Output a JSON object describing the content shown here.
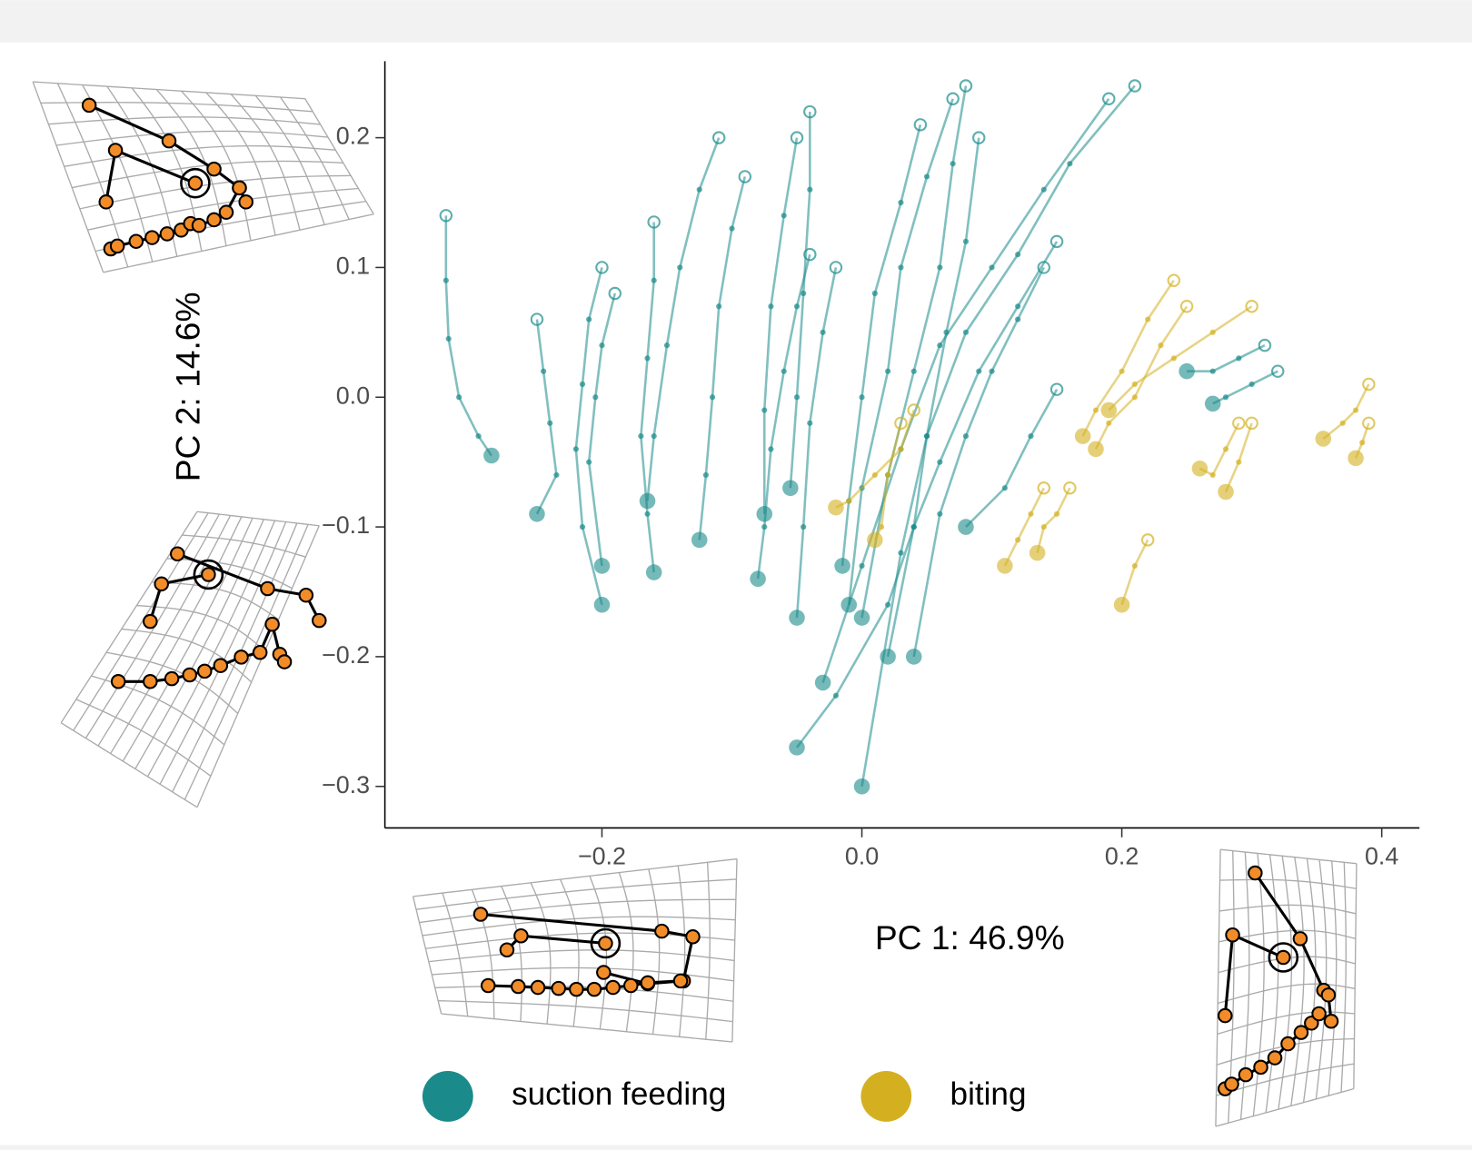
{
  "chart_data": {
    "type": "line",
    "xlabel": "PC 1: 46.9%",
    "ylabel": "PC 2: 14.6%",
    "xlim": [
      -0.367,
      0.429
    ],
    "ylim": [
      -0.332,
      0.259
    ],
    "xticks": [
      {
        "value": -0.2,
        "label": "−0.2"
      },
      {
        "value": 0,
        "label": "0.0"
      },
      0.2,
      0.4
    ],
    "yticks": [
      0.2,
      0.1,
      {
        "value": 0,
        "label": "0.0"
      },
      {
        "value": -0.1,
        "label": "−0.1"
      },
      {
        "value": -0.2,
        "label": "−0.2"
      },
      {
        "value": -0.3,
        "label": "−0.3"
      }
    ],
    "series": [
      {
        "name": "suction feeding",
        "color": "#1a8a8a",
        "trajectories": [
          {
            "x": [
              -0.32,
              -0.32,
              -0.318,
              -0.31,
              -0.295,
              -0.285
            ],
            "y": [
              0.14,
              0.09,
              0.045,
              0.0,
              -0.03,
              -0.045
            ]
          },
          {
            "x": [
              -0.25,
              -0.245,
              -0.24,
              -0.235,
              -0.25
            ],
            "y": [
              0.06,
              0.02,
              -0.02,
              -0.06,
              -0.09
            ]
          },
          {
            "x": [
              -0.2,
              -0.21,
              -0.215,
              -0.22,
              -0.215,
              -0.2
            ],
            "y": [
              0.1,
              0.06,
              0.01,
              -0.04,
              -0.1,
              -0.16
            ]
          },
          {
            "x": [
              -0.19,
              -0.2,
              -0.205,
              -0.21,
              -0.2
            ],
            "y": [
              0.08,
              0.04,
              0.0,
              -0.05,
              -0.13
            ]
          },
          {
            "x": [
              -0.11,
              -0.125,
              -0.14,
              -0.15,
              -0.16,
              -0.165
            ],
            "y": [
              0.2,
              0.16,
              0.1,
              0.04,
              -0.03,
              -0.08
            ]
          },
          {
            "x": [
              -0.16,
              -0.16,
              -0.165,
              -0.17,
              -0.165,
              -0.16
            ],
            "y": [
              0.135,
              0.09,
              0.03,
              -0.03,
              -0.09,
              -0.135
            ]
          },
          {
            "x": [
              -0.09,
              -0.1,
              -0.11,
              -0.115,
              -0.12,
              -0.125
            ],
            "y": [
              0.17,
              0.13,
              0.07,
              0.0,
              -0.06,
              -0.11
            ]
          },
          {
            "x": [
              -0.05,
              -0.06,
              -0.07,
              -0.075,
              -0.075
            ],
            "y": [
              0.2,
              0.14,
              0.07,
              -0.01,
              -0.09
            ]
          },
          {
            "x": [
              -0.04,
              -0.05,
              -0.06,
              -0.07,
              -0.075,
              -0.08
            ],
            "y": [
              0.11,
              0.07,
              0.02,
              -0.04,
              -0.1,
              -0.14
            ]
          },
          {
            "x": [
              -0.04,
              -0.04,
              -0.045,
              -0.05,
              -0.055
            ],
            "y": [
              0.22,
              0.16,
              0.08,
              0.0,
              -0.07
            ]
          },
          {
            "x": [
              0.045,
              0.03,
              0.01,
              0.0,
              -0.01,
              -0.015
            ],
            "y": [
              0.21,
              0.15,
              0.08,
              0.0,
              -0.08,
              -0.13
            ]
          },
          {
            "x": [
              0.07,
              0.05,
              0.03,
              0.02,
              0.0,
              -0.01
            ],
            "y": [
              0.23,
              0.17,
              0.1,
              0.02,
              -0.07,
              -0.16
            ]
          },
          {
            "x": [
              0.08,
              0.07,
              0.06,
              0.04,
              0.02,
              0.0
            ],
            "y": [
              0.24,
              0.18,
              0.1,
              0.02,
              -0.06,
              -0.17
            ]
          },
          {
            "x": [
              0.09,
              0.08,
              0.065,
              0.05,
              0.04,
              0.02
            ],
            "y": [
              0.2,
              0.12,
              0.05,
              -0.03,
              -0.1,
              -0.2
            ]
          },
          {
            "x": [
              0.19,
              0.14,
              0.1,
              0.06,
              0.03,
              0.0,
              -0.03
            ],
            "y": [
              0.23,
              0.16,
              0.1,
              0.04,
              -0.04,
              -0.13,
              -0.22
            ]
          },
          {
            "x": [
              0.21,
              0.16,
              0.12,
              0.08,
              0.05,
              0.03,
              0.0
            ],
            "y": [
              0.24,
              0.18,
              0.11,
              0.05,
              -0.03,
              -0.12,
              -0.3
            ]
          },
          {
            "x": [
              0.15,
              0.12,
              0.09,
              0.06,
              0.04,
              0.02,
              -0.02,
              -0.05
            ],
            "y": [
              0.12,
              0.07,
              0.02,
              -0.05,
              -0.1,
              -0.16,
              -0.23,
              -0.27
            ]
          },
          {
            "x": [
              0.15,
              0.13,
              0.11,
              0.08
            ],
            "y": [
              0.006,
              -0.03,
              -0.07,
              -0.1
            ]
          },
          {
            "x": [
              0.14,
              0.12,
              0.1,
              0.08,
              0.06,
              0.04
            ],
            "y": [
              0.1,
              0.06,
              0.02,
              -0.03,
              -0.09,
              -0.2
            ]
          },
          {
            "x": [
              0.31,
              0.29,
              0.27,
              0.25
            ],
            "y": [
              0.04,
              0.03,
              0.02,
              0.02
            ]
          },
          {
            "x": [
              0.32,
              0.3,
              0.28,
              0.27
            ],
            "y": [
              0.02,
              0.01,
              0.0,
              -0.005
            ]
          },
          {
            "x": [
              -0.02,
              -0.03,
              -0.04,
              -0.045,
              -0.05
            ],
            "y": [
              0.1,
              0.05,
              -0.02,
              -0.1,
              -0.17
            ]
          }
        ]
      },
      {
        "name": "biting",
        "color": "#d4b020",
        "trajectories": [
          {
            "x": [
              0.24,
              0.22,
              0.2,
              0.18,
              0.17
            ],
            "y": [
              0.09,
              0.06,
              0.02,
              -0.01,
              -0.03
            ]
          },
          {
            "x": [
              0.25,
              0.23,
              0.21,
              0.19,
              0.18
            ],
            "y": [
              0.07,
              0.04,
              0.0,
              -0.02,
              -0.04
            ]
          },
          {
            "x": [
              0.3,
              0.27,
              0.24,
              0.21,
              0.19
            ],
            "y": [
              0.07,
              0.05,
              0.03,
              0.01,
              -0.01
            ]
          },
          {
            "x": [
              0.14,
              0.13,
              0.12,
              0.11
            ],
            "y": [
              -0.07,
              -0.09,
              -0.11,
              -0.13
            ]
          },
          {
            "x": [
              0.16,
              0.15,
              0.14,
              0.135
            ],
            "y": [
              -0.07,
              -0.09,
              -0.1,
              -0.12
            ]
          },
          {
            "x": [
              0.22,
              0.21,
              0.2
            ],
            "y": [
              -0.11,
              -0.13,
              -0.16
            ]
          },
          {
            "x": [
              0.29,
              0.28,
              0.27,
              0.26
            ],
            "y": [
              -0.02,
              -0.04,
              -0.06,
              -0.055
            ]
          },
          {
            "x": [
              0.3,
              0.29,
              0.28
            ],
            "y": [
              -0.02,
              -0.05,
              -0.073
            ]
          },
          {
            "x": [
              0.39,
              0.38,
              0.37,
              0.355
            ],
            "y": [
              0.01,
              -0.01,
              -0.02,
              -0.032
            ]
          },
          {
            "x": [
              0.39,
              0.385,
              0.38
            ],
            "y": [
              -0.02,
              -0.035,
              -0.047
            ]
          },
          {
            "x": [
              0.04,
              0.03,
              0.01,
              -0.01,
              -0.02
            ],
            "y": [
              -0.01,
              -0.04,
              -0.06,
              -0.08,
              -0.085
            ]
          },
          {
            "x": [
              0.03,
              0.02,
              0.015,
              0.01
            ],
            "y": [
              -0.02,
              -0.06,
              -0.1,
              -0.11
            ]
          }
        ]
      }
    ]
  }
}
